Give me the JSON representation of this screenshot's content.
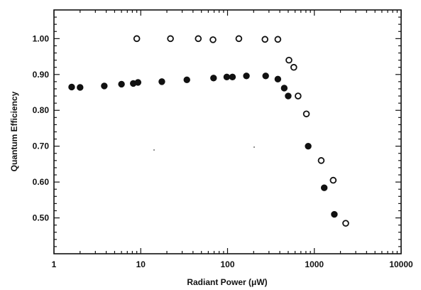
{
  "chart_data": {
    "type": "scatter",
    "title": "",
    "xlabel": "Radiant Power (μW)",
    "ylabel": "Quantum Efficiency",
    "xscale": "log",
    "xlim": [
      1,
      10000
    ],
    "ylim": [
      0.4,
      1.08
    ],
    "xticks": [
      1,
      10,
      100,
      1000,
      10000
    ],
    "xtick_labels": [
      "1",
      "10",
      "100",
      "1000",
      "10000"
    ],
    "yticks": [
      0.5,
      0.6,
      0.7,
      0.8,
      0.9,
      1.0
    ],
    "ytick_labels": [
      "0.50",
      "0.60",
      "0.70",
      "0.80",
      "0.90",
      "1.00"
    ],
    "grid": false,
    "legend": "none",
    "series": [
      {
        "marker": "filled-circle",
        "x": [
          1.6,
          2.0,
          3.8,
          6.0,
          8.2,
          9.3,
          17.5,
          34,
          69,
          98,
          114,
          165,
          275,
          380,
          450,
          500,
          850,
          1300,
          1700
        ],
        "y": [
          0.865,
          0.864,
          0.868,
          0.873,
          0.875,
          0.878,
          0.88,
          0.885,
          0.89,
          0.893,
          0.893,
          0.896,
          0.896,
          0.887,
          0.862,
          0.84,
          0.7,
          0.584,
          0.51
        ]
      },
      {
        "marker": "open-circle",
        "x": [
          9.0,
          22,
          46,
          68,
          135,
          270,
          380,
          510,
          580,
          650,
          810,
          1200,
          1650,
          2300
        ],
        "y": [
          1.0,
          1.0,
          1.0,
          0.997,
          1.0,
          0.998,
          0.998,
          0.94,
          0.92,
          0.84,
          0.79,
          0.66,
          0.605,
          0.485
        ]
      }
    ]
  }
}
